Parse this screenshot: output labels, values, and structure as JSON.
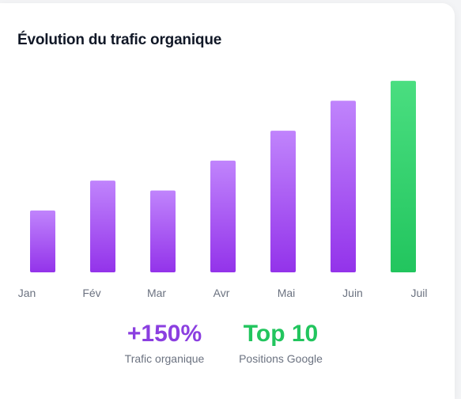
{
  "chart_data": {
    "type": "bar",
    "title": "Évolution du trafic organique",
    "categories": [
      "Jan",
      "Fév",
      "Mar",
      "Avr",
      "Mai",
      "Juin",
      "Juil"
    ],
    "values": [
      31,
      46,
      41,
      56,
      71,
      86,
      96
    ],
    "ylim": [
      0,
      100
    ],
    "grid": false,
    "legend": "none",
    "colors": {
      "default_top": "#c084fc",
      "default_bottom": "#9333ea",
      "highlight_top": "#4ade80",
      "highlight_bottom": "#22c55e"
    },
    "highlight_index": 6
  },
  "stats": [
    {
      "value": "+150%",
      "label": "Trafic organique",
      "color": "#8b3fe0"
    },
    {
      "value": "Top 10",
      "label": "Positions Google",
      "color": "#22c55e"
    }
  ]
}
